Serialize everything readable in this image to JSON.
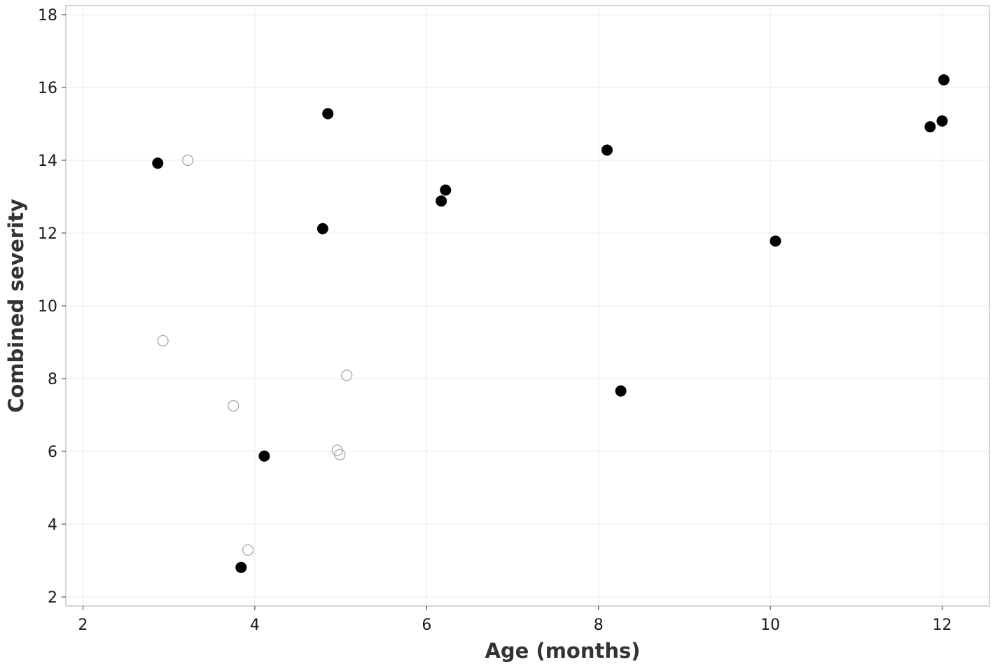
{
  "chart_data": {
    "type": "scatter",
    "xlabel": "Age (months)",
    "ylabel": "Combined severity",
    "xlim": [
      1.8,
      12.55
    ],
    "ylim": [
      1.75,
      18.25
    ],
    "x_ticks": [
      2,
      4,
      6,
      8,
      10,
      12
    ],
    "y_ticks": [
      2,
      4,
      6,
      8,
      10,
      12,
      14,
      16,
      18
    ],
    "grid": true,
    "legend": "none",
    "series": [
      {
        "style": "filled",
        "color": "#000000",
        "points": [
          {
            "x": 2.87,
            "y": 13.92
          },
          {
            "x": 3.84,
            "y": 2.81
          },
          {
            "x": 4.11,
            "y": 5.87
          },
          {
            "x": 4.79,
            "y": 12.12
          },
          {
            "x": 4.85,
            "y": 15.28
          },
          {
            "x": 6.17,
            "y": 12.88
          },
          {
            "x": 6.22,
            "y": 13.18
          },
          {
            "x": 8.1,
            "y": 14.28
          },
          {
            "x": 8.26,
            "y": 7.66
          },
          {
            "x": 10.06,
            "y": 11.78
          },
          {
            "x": 11.86,
            "y": 14.92
          },
          {
            "x": 12.0,
            "y": 15.08
          },
          {
            "x": 12.02,
            "y": 16.21
          }
        ]
      },
      {
        "style": "hollow",
        "color": "#a0a0a0",
        "points": [
          {
            "x": 2.93,
            "y": 9.04
          },
          {
            "x": 3.22,
            "y": 14.0
          },
          {
            "x": 3.75,
            "y": 7.25
          },
          {
            "x": 3.92,
            "y": 3.29
          },
          {
            "x": 4.96,
            "y": 6.03
          },
          {
            "x": 4.99,
            "y": 5.91
          },
          {
            "x": 5.07,
            "y": 8.09
          }
        ]
      }
    ]
  }
}
